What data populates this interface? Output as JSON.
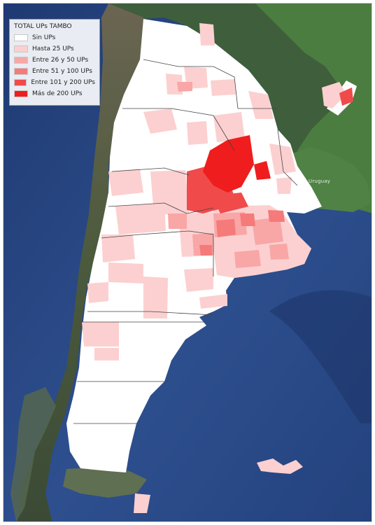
{
  "legend": {
    "title": "TOTAL UPs TAMBO",
    "items": [
      {
        "label": "Sin UPs",
        "color": "#ffffff"
      },
      {
        "label": "Hasta 25 UPs",
        "color": "#fcd0d0"
      },
      {
        "label": "Entre 26 y 50 UPs",
        "color": "#f9a6a6"
      },
      {
        "label": "Entre 51 y 100 UPs",
        "color": "#f57a7a"
      },
      {
        "label": "Entre 101 y 200 UPs",
        "color": "#f04a4a"
      },
      {
        "label": "Más de 200 UPs",
        "color": "#ef1d1d"
      }
    ]
  },
  "labels": {
    "uruguay": "Uruguay"
  },
  "colors": {
    "ocean": "#2b4a86",
    "land_dark": "#3d5a3a",
    "land_green": "#4a7a3e",
    "border_line": "#444444"
  }
}
